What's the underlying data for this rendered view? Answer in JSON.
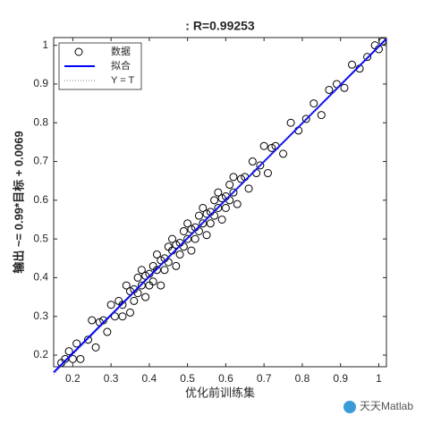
{
  "chart_data": {
    "type": "scatter",
    "title": ": R=0.99253",
    "x_label": "优化前训练集",
    "y_label": "输出 ~= 0.99*目标 + 0.0069",
    "annotation": "天天Matlab",
    "xlim": [
      0.15,
      1.02
    ],
    "ylim": [
      0.17,
      1.02
    ],
    "xticks": [
      0.2,
      0.3,
      0.4,
      0.5,
      0.6,
      0.7,
      0.8,
      0.9,
      1
    ],
    "yticks": [
      0.2,
      0.3,
      0.4,
      0.5,
      0.6,
      0.7,
      0.8,
      0.9,
      1
    ],
    "legend": "top-left",
    "series": [
      {
        "name": "数据",
        "mode": "markers",
        "color": "#000000",
        "x": [
          0.17,
          0.18,
          0.19,
          0.2,
          0.21,
          0.22,
          0.24,
          0.25,
          0.26,
          0.27,
          0.28,
          0.29,
          0.3,
          0.31,
          0.32,
          0.33,
          0.33,
          0.34,
          0.35,
          0.35,
          0.36,
          0.36,
          0.37,
          0.37,
          0.38,
          0.38,
          0.39,
          0.39,
          0.4,
          0.4,
          0.41,
          0.41,
          0.42,
          0.42,
          0.43,
          0.43,
          0.44,
          0.44,
          0.45,
          0.45,
          0.46,
          0.46,
          0.47,
          0.47,
          0.48,
          0.48,
          0.49,
          0.49,
          0.5,
          0.5,
          0.51,
          0.51,
          0.52,
          0.52,
          0.53,
          0.53,
          0.54,
          0.54,
          0.55,
          0.55,
          0.56,
          0.56,
          0.57,
          0.57,
          0.58,
          0.58,
          0.59,
          0.59,
          0.6,
          0.6,
          0.61,
          0.61,
          0.62,
          0.62,
          0.63,
          0.64,
          0.65,
          0.66,
          0.67,
          0.68,
          0.69,
          0.7,
          0.71,
          0.72,
          0.73,
          0.75,
          0.77,
          0.79,
          0.81,
          0.83,
          0.85,
          0.87,
          0.89,
          0.91,
          0.93,
          0.95,
          0.97,
          0.99,
          1.0,
          1.01
        ],
        "values": [
          0.18,
          0.19,
          0.21,
          0.19,
          0.23,
          0.19,
          0.24,
          0.29,
          0.22,
          0.285,
          0.29,
          0.26,
          0.33,
          0.3,
          0.34,
          0.3,
          0.33,
          0.38,
          0.31,
          0.365,
          0.37,
          0.34,
          0.4,
          0.36,
          0.38,
          0.42,
          0.35,
          0.405,
          0.41,
          0.38,
          0.43,
          0.39,
          0.42,
          0.46,
          0.38,
          0.445,
          0.45,
          0.42,
          0.48,
          0.44,
          0.47,
          0.5,
          0.43,
          0.485,
          0.49,
          0.46,
          0.52,
          0.48,
          0.5,
          0.54,
          0.47,
          0.525,
          0.53,
          0.5,
          0.56,
          0.52,
          0.54,
          0.58,
          0.51,
          0.565,
          0.57,
          0.54,
          0.6,
          0.56,
          0.58,
          0.62,
          0.55,
          0.605,
          0.61,
          0.58,
          0.64,
          0.6,
          0.62,
          0.66,
          0.59,
          0.655,
          0.66,
          0.63,
          0.7,
          0.67,
          0.69,
          0.74,
          0.67,
          0.735,
          0.74,
          0.72,
          0.8,
          0.78,
          0.81,
          0.85,
          0.82,
          0.885,
          0.9,
          0.89,
          0.95,
          0.94,
          0.97,
          1.0,
          0.99,
          1.01
        ]
      },
      {
        "name": "拟合",
        "mode": "line",
        "color": "#0000ff",
        "x": [
          0.15,
          1.02
        ],
        "values": [
          0.1554,
          1.0167
        ]
      },
      {
        "name": "Y = T",
        "mode": "dotted",
        "color": "#808080",
        "x": [
          0.15,
          1.02
        ],
        "values": [
          0.15,
          1.02
        ]
      }
    ]
  }
}
